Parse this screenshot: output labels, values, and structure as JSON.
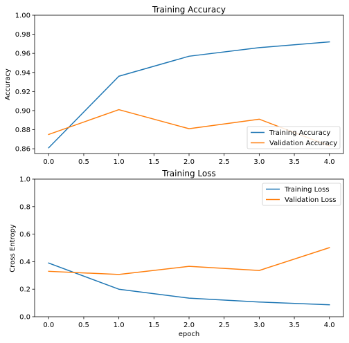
{
  "chart_data": [
    {
      "type": "line",
      "title": "Training Accuracy",
      "xlabel": "",
      "ylabel": "Accuracy",
      "x": [
        0,
        1,
        2,
        3,
        4
      ],
      "xlim": [
        -0.2,
        4.2
      ],
      "ylim": [
        0.855,
        1.0
      ],
      "xticks": [
        0.0,
        0.5,
        1.0,
        1.5,
        2.0,
        2.5,
        3.0,
        3.5,
        4.0
      ],
      "xtick_labels": [
        "0.0",
        "0.5",
        "1.0",
        "1.5",
        "2.0",
        "2.5",
        "3.0",
        "3.5",
        "4.0"
      ],
      "yticks": [
        0.86,
        0.88,
        0.9,
        0.92,
        0.94,
        0.96,
        0.98,
        1.0
      ],
      "ytick_labels": [
        "0.86",
        "0.88",
        "0.90",
        "0.92",
        "0.94",
        "0.96",
        "0.98",
        "1.00"
      ],
      "grid": false,
      "legend_position": "lower-right",
      "series": [
        {
          "name": "Training Accuracy",
          "color": "#1f77b4",
          "values": [
            0.861,
            0.936,
            0.957,
            0.966,
            0.972
          ]
        },
        {
          "name": "Validation Accuracy",
          "color": "#ff7f0e",
          "values": [
            0.875,
            0.901,
            0.881,
            0.891,
            0.863
          ]
        }
      ]
    },
    {
      "type": "line",
      "title": "Training Loss",
      "xlabel": "epoch",
      "ylabel": "Cross Entropy",
      "x": [
        0,
        1,
        2,
        3,
        4
      ],
      "xlim": [
        -0.2,
        4.2
      ],
      "ylim": [
        0.0,
        1.0
      ],
      "xticks": [
        0.0,
        0.5,
        1.0,
        1.5,
        2.0,
        2.5,
        3.0,
        3.5,
        4.0
      ],
      "xtick_labels": [
        "0.0",
        "0.5",
        "1.0",
        "1.5",
        "2.0",
        "2.5",
        "3.0",
        "3.5",
        "4.0"
      ],
      "yticks": [
        0.0,
        0.2,
        0.4,
        0.6,
        0.8,
        1.0
      ],
      "ytick_labels": [
        "0.0",
        "0.2",
        "0.4",
        "0.6",
        "0.8",
        "1.0"
      ],
      "grid": false,
      "legend_position": "upper-right",
      "series": [
        {
          "name": "Training Loss",
          "color": "#1f77b4",
          "values": [
            0.39,
            0.2,
            0.135,
            0.107,
            0.087
          ]
        },
        {
          "name": "Validation Loss",
          "color": "#ff7f0e",
          "values": [
            0.33,
            0.307,
            0.366,
            0.336,
            0.502
          ]
        }
      ]
    }
  ]
}
